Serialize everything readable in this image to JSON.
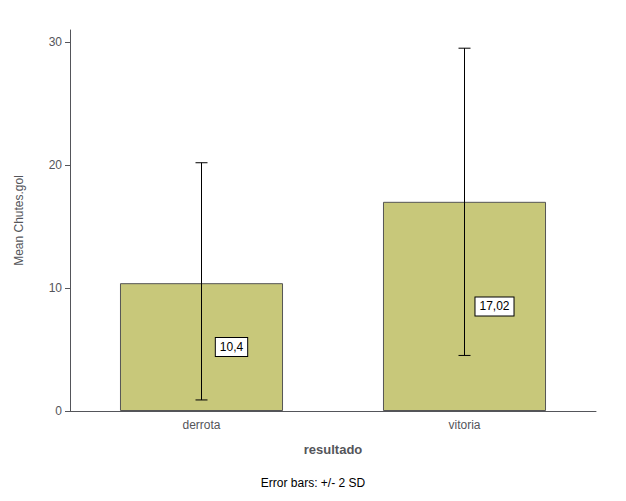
{
  "chart_data": {
    "type": "bar",
    "categories": [
      "derrota",
      "vitoria"
    ],
    "values": [
      10.4,
      17.02
    ],
    "value_labels": [
      "10,4",
      "17,02"
    ],
    "data_labels": true,
    "error_upper": [
      9.8,
      12.5
    ],
    "error_lower": [
      9.5,
      12.5
    ],
    "color": "#c8c87a",
    "xlabel": "resultado",
    "ylabel": "Mean Chutes.gol",
    "annotation": "Error bars: +/- 2 SD",
    "ylim": [
      0,
      31
    ],
    "yticks": [
      0,
      10,
      20,
      30
    ],
    "grid": false
  }
}
